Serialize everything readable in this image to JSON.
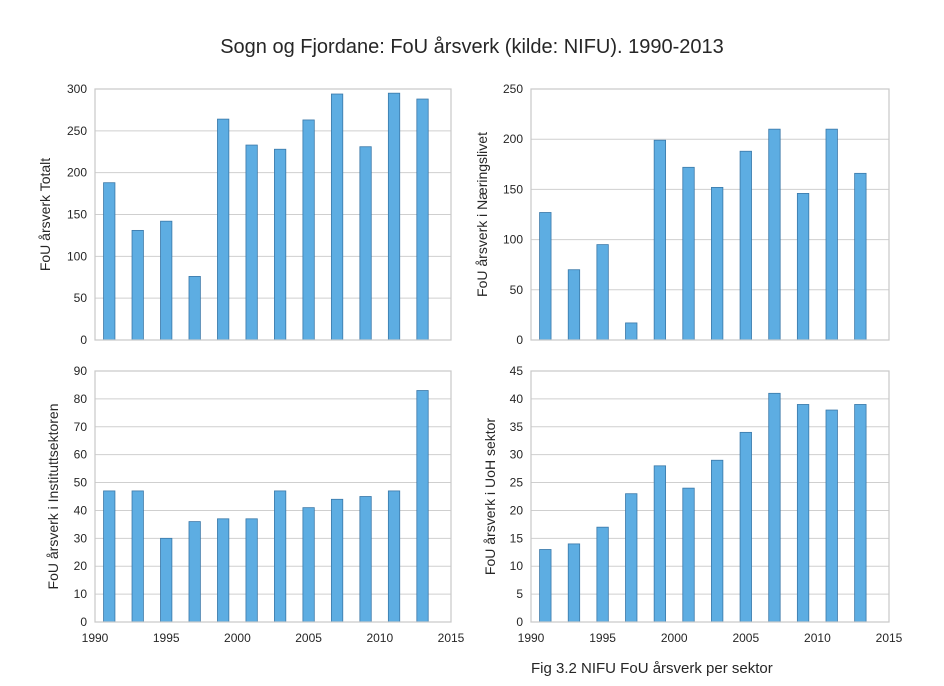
{
  "title": "Sogn og Fjordane: FoU årsverk (kilde: NIFU). 1990-2013",
  "caption": "Fig 3.2 NIFU FoU årsverk per sektor",
  "colors": {
    "bar": "#5dade2",
    "bar_edge": "#3a78a8",
    "grid": "#cfcfcf",
    "frame": "#c8c8c8"
  },
  "chart_data": [
    {
      "type": "bar",
      "ylabel": "FoU årsverk Totalt",
      "x": [
        1991,
        1993,
        1995,
        1997,
        1999,
        2001,
        2003,
        2005,
        2007,
        2009,
        2011,
        2013
      ],
      "values": [
        188,
        131,
        142,
        76,
        264,
        233,
        228,
        263,
        294,
        231,
        295,
        288
      ],
      "ylim": [
        0,
        300
      ],
      "yticks": [
        0,
        50,
        100,
        150,
        200,
        250,
        300
      ],
      "xlim": [
        1990,
        2015
      ],
      "xticks": [
        1990,
        1995,
        2000,
        2005,
        2010,
        2015
      ],
      "show_xticks": false,
      "grid": true
    },
    {
      "type": "bar",
      "ylabel": "FoU årsverk i Næringslivet",
      "x": [
        1991,
        1993,
        1995,
        1997,
        1999,
        2001,
        2003,
        2005,
        2007,
        2009,
        2011,
        2013
      ],
      "values": [
        127,
        70,
        95,
        17,
        199,
        172,
        152,
        188,
        210,
        146,
        210,
        166
      ],
      "ylim": [
        0,
        250
      ],
      "yticks": [
        0,
        50,
        100,
        150,
        200,
        250
      ],
      "xlim": [
        1990,
        2015
      ],
      "xticks": [
        1990,
        1995,
        2000,
        2005,
        2010,
        2015
      ],
      "show_xticks": false,
      "grid": true
    },
    {
      "type": "bar",
      "ylabel": "FoU årsverk i Instituttsektoren",
      "x": [
        1991,
        1993,
        1995,
        1997,
        1999,
        2001,
        2003,
        2005,
        2007,
        2009,
        2011,
        2013
      ],
      "values": [
        47,
        47,
        30,
        36,
        37,
        37,
        47,
        41,
        44,
        45,
        47,
        83
      ],
      "ylim": [
        0,
        90
      ],
      "yticks": [
        0,
        10,
        20,
        30,
        40,
        50,
        60,
        70,
        80,
        90
      ],
      "xlim": [
        1990,
        2015
      ],
      "xticks": [
        1990,
        1995,
        2000,
        2005,
        2010,
        2015
      ],
      "show_xticks": true,
      "grid": true
    },
    {
      "type": "bar",
      "ylabel": "FoU årsverk i UoH sektor",
      "x": [
        1991,
        1993,
        1995,
        1997,
        1999,
        2001,
        2003,
        2005,
        2007,
        2009,
        2011,
        2013
      ],
      "values": [
        13,
        14,
        17,
        23,
        28,
        24,
        29,
        34,
        41,
        39,
        38,
        39
      ],
      "ylim": [
        0,
        45
      ],
      "yticks": [
        0,
        5,
        10,
        15,
        20,
        25,
        30,
        35,
        40,
        45
      ],
      "xlim": [
        1990,
        2015
      ],
      "xticks": [
        1990,
        1995,
        2000,
        2005,
        2010,
        2015
      ],
      "show_xticks": true,
      "grid": true
    }
  ]
}
